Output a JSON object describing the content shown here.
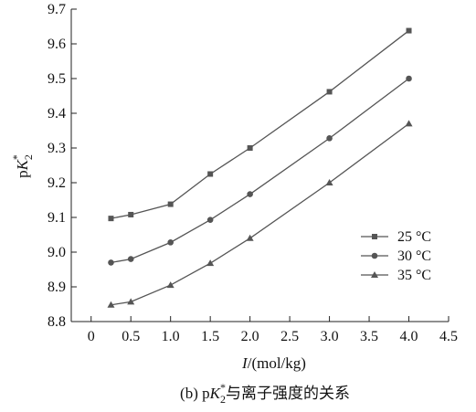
{
  "chart_data": {
    "type": "line",
    "title": "",
    "caption_prefix": "(b) p",
    "caption_symbol": "K",
    "caption_sub": "2",
    "caption_sup": "*",
    "caption_suffix": "与离子强度的关系",
    "xlabel_symbol": "I",
    "xlabel_unit": "/(mol/kg)",
    "ylabel_prefix": "p",
    "ylabel_symbol": "K",
    "ylabel_sub": "2",
    "ylabel_sup": "*",
    "xlim": [
      -0.25,
      4.5
    ],
    "ylim": [
      8.8,
      9.7
    ],
    "x_ticks": [
      0,
      0.5,
      1.0,
      1.5,
      2.0,
      2.5,
      3.0,
      3.5,
      4.0,
      4.5
    ],
    "x_tick_labels": [
      "0",
      "0.5",
      "1.0",
      "1.5",
      "2.0",
      "2.5",
      "3.0",
      "3.5",
      "4.0",
      "4.5"
    ],
    "y_ticks": [
      8.8,
      8.9,
      9.0,
      9.1,
      9.2,
      9.3,
      9.4,
      9.5,
      9.6,
      9.7
    ],
    "y_tick_labels": [
      "8.8",
      "8.9",
      "9.0",
      "9.1",
      "9.2",
      "9.3",
      "9.4",
      "9.5",
      "9.6",
      "9.7"
    ],
    "grid": false,
    "legend_position": "right-middle",
    "line_color": "#555555",
    "series": [
      {
        "name": "25 °C",
        "marker": "square",
        "x": [
          0.25,
          0.5,
          1.0,
          1.5,
          2.0,
          3.0,
          4.0
        ],
        "y": [
          9.097,
          9.108,
          9.138,
          9.225,
          9.3,
          9.462,
          9.638
        ]
      },
      {
        "name": "30 °C",
        "marker": "circle",
        "x": [
          0.25,
          0.5,
          1.0,
          1.5,
          2.0,
          3.0,
          4.0
        ],
        "y": [
          8.97,
          8.98,
          9.028,
          9.093,
          9.167,
          9.328,
          9.5
        ]
      },
      {
        "name": "35 °C",
        "marker": "triangle",
        "x": [
          0.25,
          0.5,
          1.0,
          1.5,
          2.0,
          3.0,
          4.0
        ],
        "y": [
          8.848,
          8.857,
          8.905,
          8.968,
          9.04,
          9.2,
          9.37
        ]
      }
    ]
  }
}
